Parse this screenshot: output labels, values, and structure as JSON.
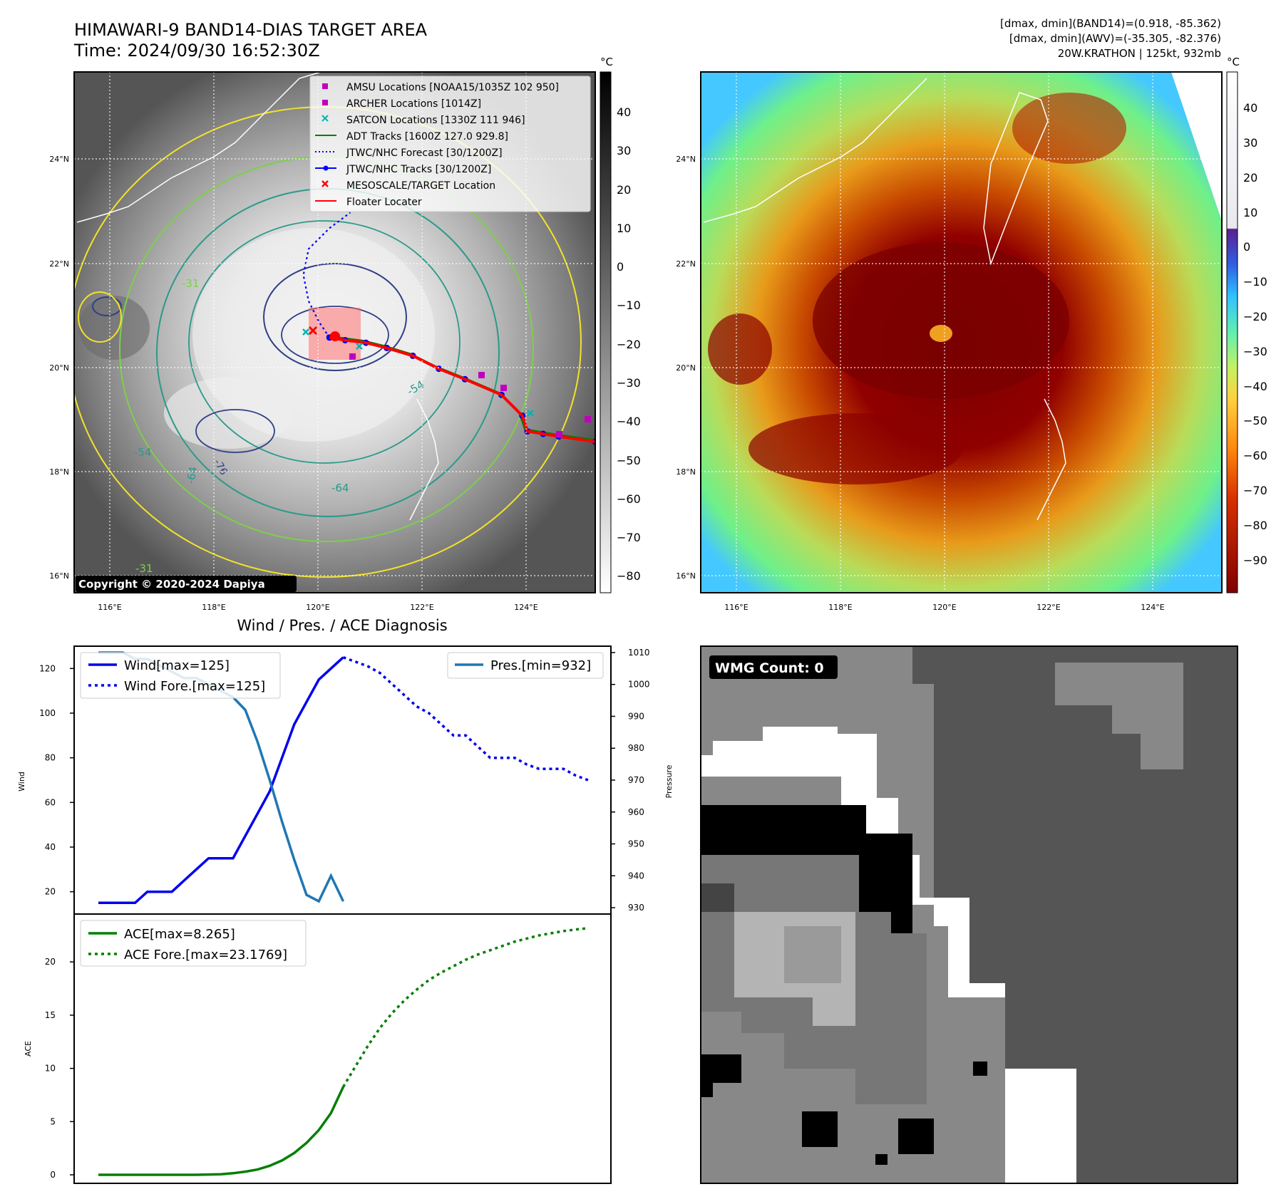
{
  "header": {
    "title_line1": "HIMAWARI-9 BAND14-DIAS TARGET AREA",
    "title_line2": "Time: 2024/09/30 16:52:30Z",
    "info_line1": "[dmax, dmin](BAND14)=(0.918, -85.362)",
    "info_line2": "[dmax, dmin](AWV)=(-35.305, -82.376)",
    "info_line3": "20W.KRATHON | 125kt, 932mb",
    "copyright": "Copyright © 2020-2024 Dapiya"
  },
  "colors": {
    "contour_yellow": "#f2e22a",
    "contour_green": "#7dcf4a",
    "contour_teal": "#2a9a8a",
    "contour_navy": "#2f3f86",
    "wind": "#0000ee",
    "pressure": "#1f77b4",
    "ace": "#008000",
    "track_red": "#ff0000",
    "amsu": "#c000c0",
    "satcon": "#00b4b4",
    "wmg_dark": "#555555",
    "wmg_mid": "#888888",
    "wmg_light": "#c8c8c8"
  },
  "map": {
    "lon_ticks": [
      "116°E",
      "118°E",
      "120°E",
      "122°E",
      "124°E"
    ],
    "lat_ticks": [
      "24°N",
      "22°N",
      "20°N",
      "18°N",
      "16°N"
    ],
    "extent": {
      "lon_min": 115.3,
      "lon_max": 125.3,
      "lat_min": 15.7,
      "lat_max": 25.7
    },
    "contour_labels": [
      "-31",
      "-54",
      "-64",
      "-76",
      "-54",
      "-31",
      "-64"
    ],
    "legend": [
      {
        "label": "AMSU Locations [NOAA15/1035Z 102 950]",
        "icon": "magenta-square"
      },
      {
        "label": "ARCHER Locations [1014Z]",
        "icon": "magenta-square"
      },
      {
        "label": "SATCON Locations [1330Z 111 946]",
        "icon": "cyan-x"
      },
      {
        "label": "ADT Tracks [1600Z 127.0 929.8]",
        "icon": "green-line"
      },
      {
        "label": "JTWC/NHC Forecast [30/1200Z]",
        "icon": "blue-dotted"
      },
      {
        "label": "JTWC/NHC Tracks [30/1200Z]",
        "icon": "blue-line-dots"
      },
      {
        "label": "MESOSCALE/TARGET Location",
        "icon": "red-x"
      },
      {
        "label": "Floater Locater",
        "icon": "red-line"
      }
    ],
    "track": {
      "jtwc_lon": [
        125.3,
        124.6,
        124.3,
        124.0,
        123.9,
        123.5,
        122.8,
        122.3,
        121.8,
        121.3,
        120.9,
        120.5,
        120.2
      ],
      "jtwc_lat": [
        18.6,
        18.7,
        18.75,
        18.8,
        19.1,
        19.5,
        19.8,
        20.0,
        20.25,
        20.4,
        20.5,
        20.55,
        20.6
      ],
      "forecast_lon": [
        120.2,
        120.0,
        119.8,
        119.7,
        119.8,
        120.2,
        120.6
      ],
      "forecast_lat": [
        20.6,
        20.9,
        21.3,
        21.8,
        22.3,
        22.7,
        23.0
      ]
    }
  },
  "colorbar1": {
    "unit": "°C",
    "ticks": [
      "40",
      "30",
      "20",
      "10",
      "0",
      "−10",
      "−20",
      "−30",
      "−40",
      "−50",
      "−60",
      "−70",
      "−80"
    ]
  },
  "colorbar2": {
    "unit": "°C",
    "ticks": [
      "40",
      "30",
      "20",
      "10",
      "0",
      "−10",
      "−20",
      "−30",
      "−40",
      "−50",
      "−60",
      "−70",
      "−80",
      "−90"
    ]
  },
  "chart_data": [
    {
      "type": "line",
      "title": "Wind / Pres. / ACE Diagnosis",
      "xlabel": "",
      "ylabel": "Wind",
      "ylabel_right": "Pressure",
      "ylim": [
        10,
        130
      ],
      "ylim_right": [
        928,
        1012
      ],
      "yticks": [
        20,
        40,
        60,
        80,
        100,
        120
      ],
      "yticks_right": [
        930,
        940,
        950,
        960,
        970,
        980,
        990,
        1000,
        1010
      ],
      "x": [
        0,
        1,
        2,
        3,
        4,
        5,
        6,
        7,
        8,
        9,
        10,
        11,
        12,
        13,
        14,
        15,
        16,
        17,
        18,
        19,
        20,
        21,
        22,
        23,
        24,
        25,
        26,
        27,
        28,
        29,
        30,
        31,
        32,
        33,
        34,
        35,
        36,
        37,
        38,
        39,
        40
      ],
      "series": [
        {
          "name": "Wind[max=125]",
          "style": "solid",
          "x": [
            0,
            1,
            2,
            3,
            4,
            5,
            6,
            7,
            8,
            9,
            10,
            11,
            12,
            13,
            14,
            15,
            16,
            17,
            18,
            19,
            20
          ],
          "values": [
            15,
            15,
            15,
            15,
            20,
            20,
            20,
            25,
            30,
            35,
            35,
            35,
            45,
            55,
            65,
            80,
            95,
            105,
            115,
            120,
            125
          ]
        },
        {
          "name": "Wind Fore.[max=125]",
          "style": "dotted",
          "x": [
            20,
            21,
            22,
            23,
            24,
            25,
            26,
            27,
            28,
            29,
            30,
            31,
            32,
            33,
            34,
            35,
            36,
            37,
            38,
            39,
            40
          ],
          "values": [
            125,
            123,
            121,
            118,
            113,
            108,
            103,
            100,
            95,
            90,
            90,
            85,
            80,
            80,
            80,
            77,
            75,
            75,
            75,
            72,
            70
          ]
        },
        {
          "name": "Pres.[min=932]",
          "axis": "right",
          "style": "solid",
          "x": [
            0,
            1,
            2,
            3,
            4,
            5,
            6,
            7,
            8,
            9,
            10,
            11,
            12,
            13,
            14,
            15,
            16,
            17,
            18,
            19,
            20
          ],
          "values": [
            1010,
            1010,
            1010,
            1008,
            1008,
            1006,
            1004,
            1002,
            1002,
            1000,
            998,
            996,
            992,
            982,
            970,
            957,
            945,
            934,
            932,
            940,
            932
          ]
        }
      ]
    },
    {
      "type": "line",
      "xlabel": "",
      "ylabel": "ACE",
      "ylim": [
        -0.8,
        24.5
      ],
      "yticks": [
        0,
        5,
        10,
        15,
        20
      ],
      "series": [
        {
          "name": "ACE[max=8.265]",
          "style": "solid",
          "x": [
            0,
            2,
            4,
            6,
            8,
            10,
            11,
            12,
            13,
            14,
            15,
            16,
            17,
            18,
            19,
            20
          ],
          "values": [
            0,
            0,
            0,
            0,
            0,
            0.05,
            0.15,
            0.3,
            0.5,
            0.85,
            1.35,
            2.05,
            3.0,
            4.2,
            5.8,
            8.265
          ]
        },
        {
          "name": "ACE Fore.[max=23.1769]",
          "style": "dotted",
          "x": [
            20,
            21,
            22,
            23,
            24,
            25,
            26,
            27,
            28,
            29,
            30,
            31,
            32,
            33,
            34,
            35,
            36,
            37,
            38,
            39,
            40
          ],
          "values": [
            8.265,
            10.2,
            12.1,
            13.8,
            15.2,
            16.4,
            17.4,
            18.3,
            19.0,
            19.6,
            20.2,
            20.7,
            21.1,
            21.5,
            21.9,
            22.2,
            22.5,
            22.7,
            22.9,
            23.05,
            23.1769
          ]
        }
      ]
    }
  ],
  "wmg": {
    "label": "WMG Count: 0"
  }
}
